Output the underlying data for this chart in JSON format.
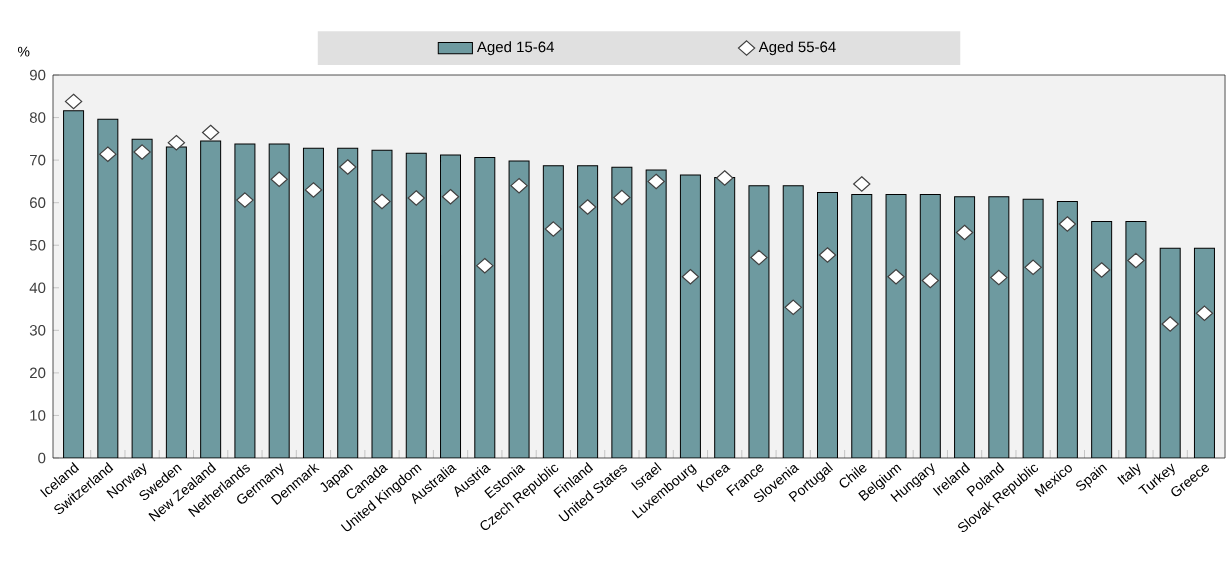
{
  "chart_data": {
    "type": "bar",
    "ylabel": "%",
    "legend": "top",
    "categories": [
      "Iceland",
      "Switzerland",
      "Norway",
      "Sweden",
      "New Zealand",
      "Netherlands",
      "Germany",
      "Denmark",
      "Japan",
      "Canada",
      "United Kingdom",
      "Australia",
      "Austria",
      "Estonia",
      "Czech Republic",
      "Finland",
      "United States",
      "Israel",
      "Luxembourg",
      "Korea",
      "France",
      "Slovenia",
      "Portugal",
      "Chile",
      "Belgium",
      "Hungary",
      "Ireland",
      "Poland",
      "Slovak Republic",
      "Mexico",
      "Spain",
      "Italy",
      "Turkey",
      "Greece"
    ],
    "series": [
      {
        "name": "Aged 15-64",
        "color": "#6e9aa0",
        "values": [
          81.6,
          79.6,
          74.9,
          73.1,
          74.5,
          73.8,
          73.8,
          72.8,
          72.8,
          72.3,
          71.6,
          71.2,
          70.6,
          69.8,
          68.7,
          68.7,
          68.3,
          67.7,
          66.5,
          65.9,
          64.0,
          64.0,
          62.4,
          61.9,
          61.9,
          61.9,
          61.4,
          61.4,
          60.8,
          60.3,
          55.6,
          55.6,
          49.3,
          49.3
        ]
      },
      {
        "name": "Aged 55-64",
        "type": "scatter",
        "marker": "diamond",
        "color": "#ffffff",
        "values": [
          83.8,
          71.4,
          71.9,
          74.1,
          76.5,
          60.6,
          65.5,
          63.0,
          68.4,
          60.3,
          61.1,
          61.4,
          45.2,
          64.0,
          53.8,
          59.0,
          61.2,
          65.0,
          42.6,
          65.8,
          47.1,
          35.4,
          47.7,
          64.4,
          42.6,
          41.7,
          53.0,
          42.4,
          44.8,
          55.0,
          44.2,
          46.4,
          31.5,
          34.0
        ]
      }
    ],
    "ylim": [
      0,
      90
    ],
    "yticks": [
      0,
      10,
      20,
      30,
      40,
      50,
      60,
      70,
      80,
      90
    ]
  }
}
